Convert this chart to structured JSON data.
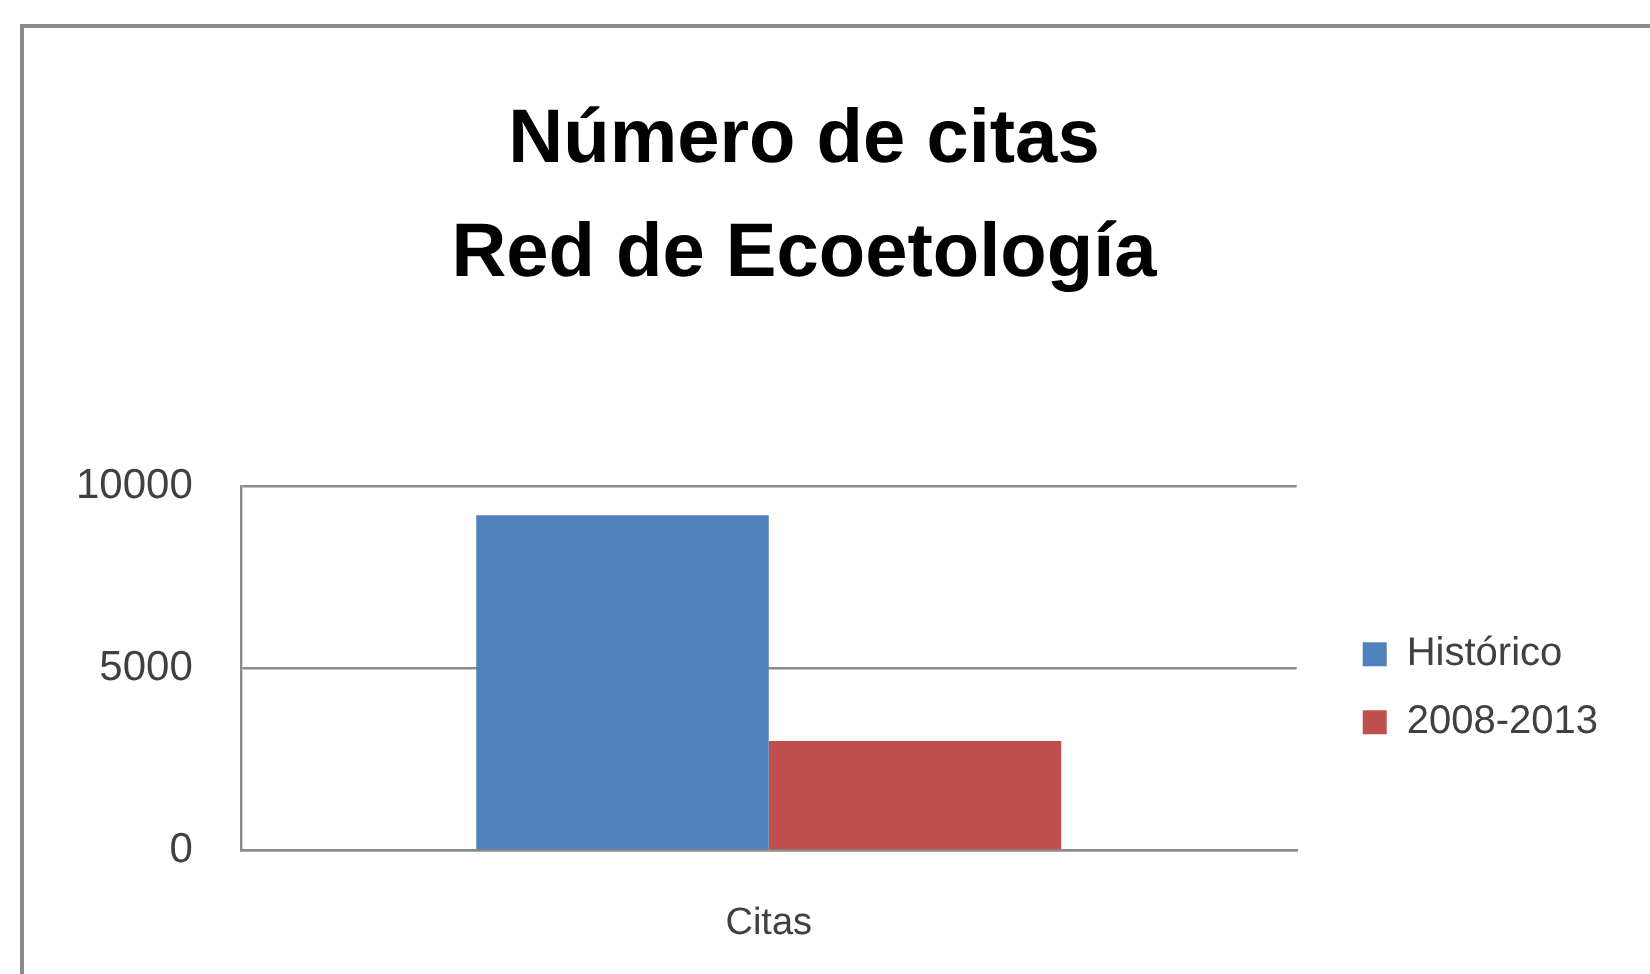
{
  "chart_data": {
    "type": "bar",
    "title": "Número de citas\nRed de Ecoetología",
    "categories": [
      "Citas"
    ],
    "series": [
      {
        "name": "Histórico",
        "color": "#4f81bd",
        "values": [
          9200
        ]
      },
      {
        "name": "2008-2013",
        "color": "#c0504d",
        "values": [
          3000
        ]
      }
    ],
    "ylim": [
      0,
      10000
    ],
    "yticks": [
      0,
      5000,
      10000
    ],
    "grid": "y",
    "legend": "right"
  }
}
